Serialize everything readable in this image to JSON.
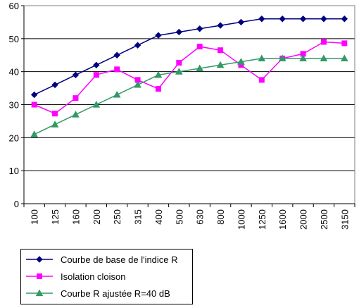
{
  "chart_data": {
    "type": "line",
    "title": "",
    "xlabel": "",
    "ylabel": "",
    "categories": [
      "100",
      "125",
      "160",
      "200",
      "250",
      "315",
      "400",
      "500",
      "630",
      "800",
      "1000",
      "1250",
      "1600",
      "2000",
      "2500",
      "3150"
    ],
    "ylim": [
      0,
      60
    ],
    "yticks": [
      0,
      10,
      20,
      30,
      40,
      50,
      60
    ],
    "grid": "horizontal",
    "legend_position": "bottom-left",
    "series": [
      {
        "name": "Courbe de base de l'indice R",
        "color": "#000080",
        "marker": "diamond",
        "values": [
          33,
          36,
          39,
          42,
          45,
          48,
          51,
          52,
          53,
          54,
          55,
          56,
          56,
          56,
          56,
          56
        ]
      },
      {
        "name": "Isolation cloison",
        "color": "#ff00ff",
        "marker": "square",
        "values": [
          30,
          27.3,
          32,
          39,
          40.7,
          37.5,
          34.8,
          42.7,
          47.6,
          46.5,
          42,
          37.5,
          44,
          45.4,
          49,
          48.6
        ]
      },
      {
        "name": "Courbe R ajustée R=40 dB",
        "color": "#339966",
        "marker": "triangle",
        "values": [
          21,
          24,
          27,
          30,
          33,
          36,
          39,
          40,
          41,
          42,
          43,
          44,
          44,
          44,
          44,
          44
        ]
      }
    ]
  }
}
